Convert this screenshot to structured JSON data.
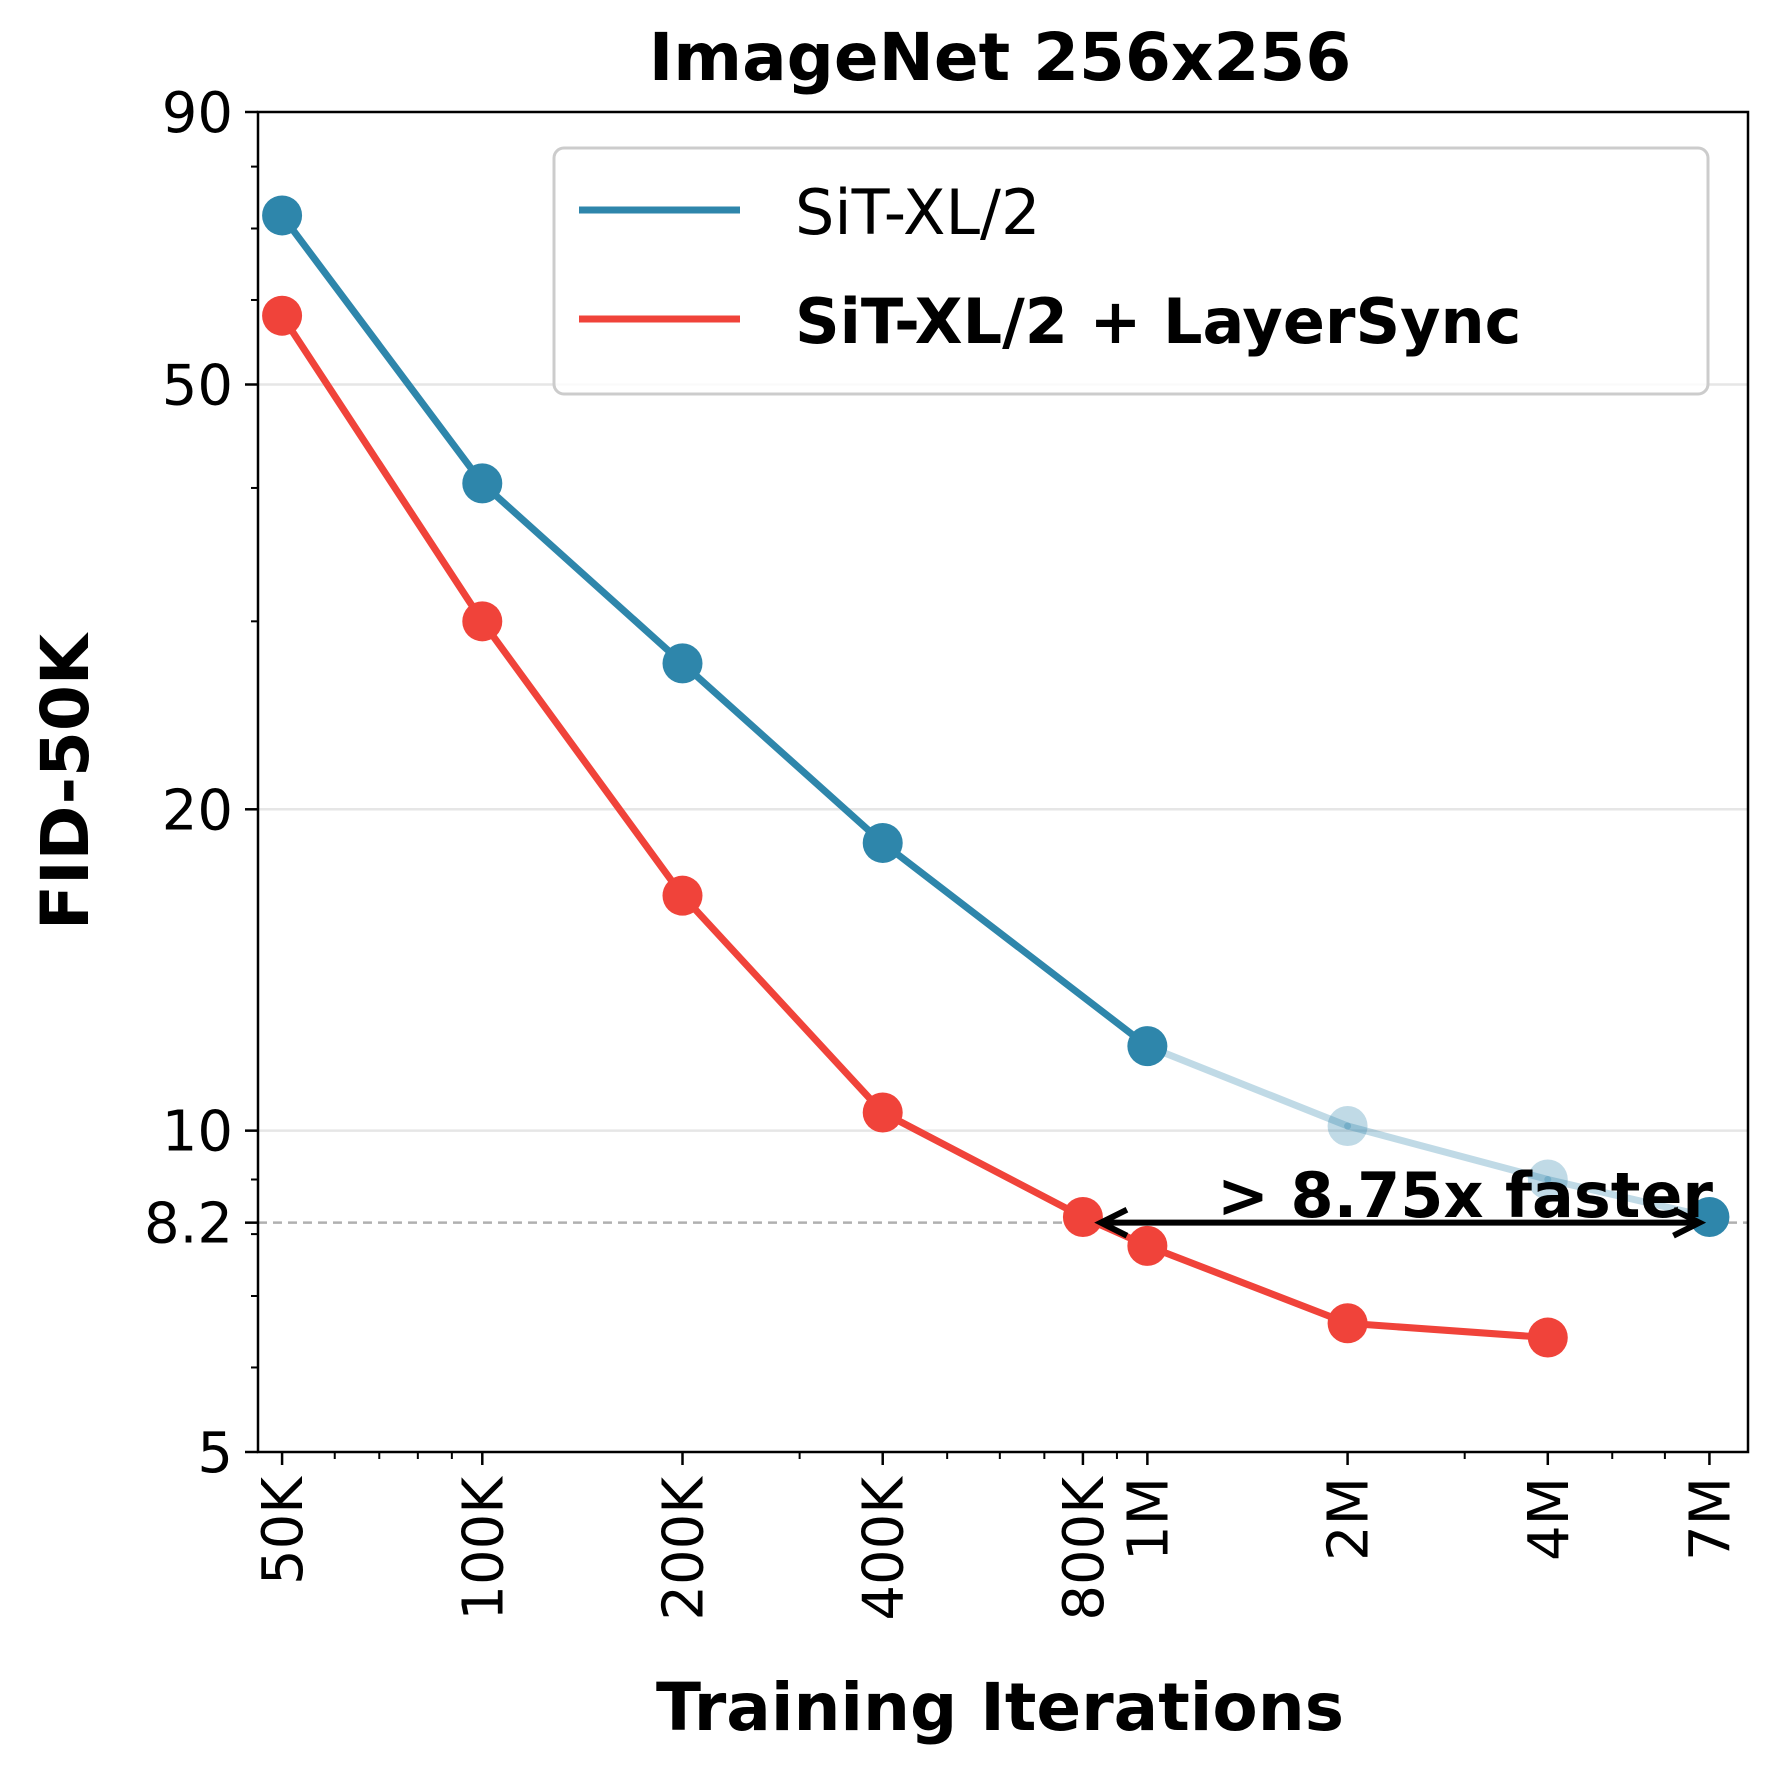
{
  "chart_data": {
    "type": "line",
    "title": "ImageNet 256x256",
    "xlabel": "Training Iterations",
    "ylabel": "FID-50K",
    "xscale": "log",
    "yscale": "log",
    "ylim": [
      5,
      90
    ],
    "xlim": [
      46000,
      8000000
    ],
    "x_ticks": [
      {
        "value": 50000,
        "label": "50K"
      },
      {
        "value": 100000,
        "label": "100K"
      },
      {
        "value": 200000,
        "label": "200K"
      },
      {
        "value": 400000,
        "label": "400K"
      },
      {
        "value": 800000,
        "label": "800K"
      },
      {
        "value": 1000000,
        "label": "1M"
      },
      {
        "value": 2000000,
        "label": "2M"
      },
      {
        "value": 4000000,
        "label": "4M"
      },
      {
        "value": 7000000,
        "label": "7M"
      }
    ],
    "y_ticks": [
      {
        "value": 90,
        "label": "90"
      },
      {
        "value": 50,
        "label": "50"
      },
      {
        "value": 20,
        "label": "20"
      },
      {
        "value": 10,
        "label": "10"
      },
      {
        "value": 8.2,
        "label": "8.2"
      },
      {
        "value": 5,
        "label": "5"
      }
    ],
    "grid_y": [
      50,
      20,
      10
    ],
    "series": [
      {
        "name": "SiT-XL/2",
        "color": "#2e86ab",
        "points": [
          {
            "x": 50000,
            "y": 72.0,
            "faded": false
          },
          {
            "x": 100000,
            "y": 40.4,
            "faded": false
          },
          {
            "x": 200000,
            "y": 27.4,
            "faded": false
          },
          {
            "x": 400000,
            "y": 18.6,
            "faded": false
          },
          {
            "x": 1000000,
            "y": 12.0,
            "faded": false
          },
          {
            "x": 2000000,
            "y": 10.1,
            "faded": true
          },
          {
            "x": 4000000,
            "y": 9.0,
            "faded": true
          },
          {
            "x": 7000000,
            "y": 8.3,
            "faded": false
          }
        ]
      },
      {
        "name": "SiT-XL/2 + LayerSync",
        "color": "#f0433a",
        "points": [
          {
            "x": 50000,
            "y": 58.0
          },
          {
            "x": 100000,
            "y": 30.0
          },
          {
            "x": 200000,
            "y": 16.6
          },
          {
            "x": 400000,
            "y": 10.4
          },
          {
            "x": 800000,
            "y": 8.3
          },
          {
            "x": 1000000,
            "y": 7.8
          },
          {
            "x": 2000000,
            "y": 6.6
          },
          {
            "x": 4000000,
            "y": 6.4
          }
        ]
      }
    ],
    "reference_line": {
      "y": 8.2,
      "style": "dashed",
      "color": "#b0b0b0"
    },
    "annotation": {
      "text": "> 8.75x faster",
      "from_x": 800000,
      "to_x": 7000000,
      "y": 8.2
    },
    "legend": {
      "position": "top-right"
    }
  }
}
